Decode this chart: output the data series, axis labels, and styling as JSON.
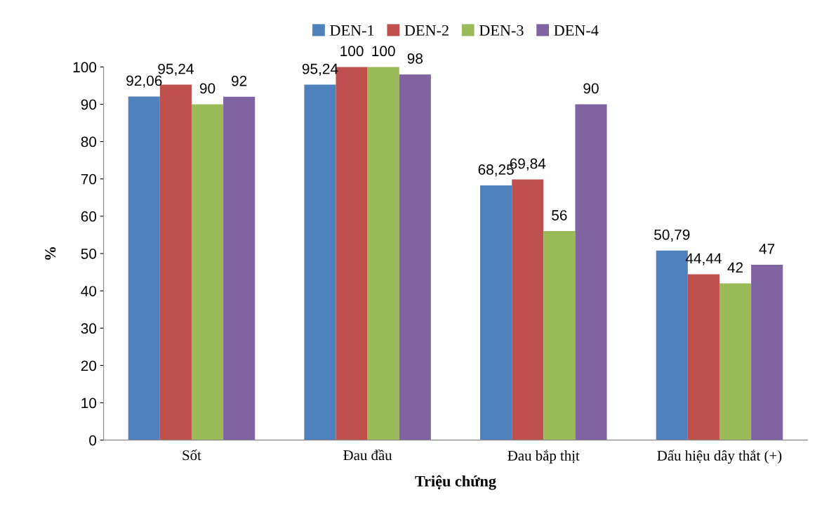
{
  "chart_data": {
    "type": "bar",
    "xlabel": "Triệu chứng",
    "ylabel": "%",
    "categories": [
      "Sốt",
      "Đau đầu",
      "Đau bắp thịt",
      "Dấu hiệu dây thắt (+)"
    ],
    "series": [
      {
        "name": "DEN-1",
        "color": "#4f81bd",
        "values": [
          92.06,
          95.24,
          68.25,
          50.79
        ],
        "value_labels": [
          "92,06",
          "95,24",
          "68,25",
          "50,79"
        ]
      },
      {
        "name": "DEN-2",
        "color": "#c0504d",
        "values": [
          95.24,
          100,
          69.84,
          44.44
        ],
        "value_labels": [
          "95,24",
          "100",
          "69,84",
          "44,44"
        ]
      },
      {
        "name": "DEN-3",
        "color": "#9bbb59",
        "values": [
          90,
          100,
          56,
          42
        ],
        "value_labels": [
          "90",
          "100",
          "56",
          "42"
        ]
      },
      {
        "name": "DEN-4",
        "color": "#8064a2",
        "values": [
          92,
          98,
          90,
          47
        ],
        "value_labels": [
          "92",
          "98",
          "90",
          "47"
        ]
      }
    ],
    "ylim": [
      0,
      100
    ],
    "yticks": [
      0,
      10,
      20,
      30,
      40,
      50,
      60,
      70,
      80,
      90,
      100
    ],
    "grid": false,
    "legend": "top"
  }
}
